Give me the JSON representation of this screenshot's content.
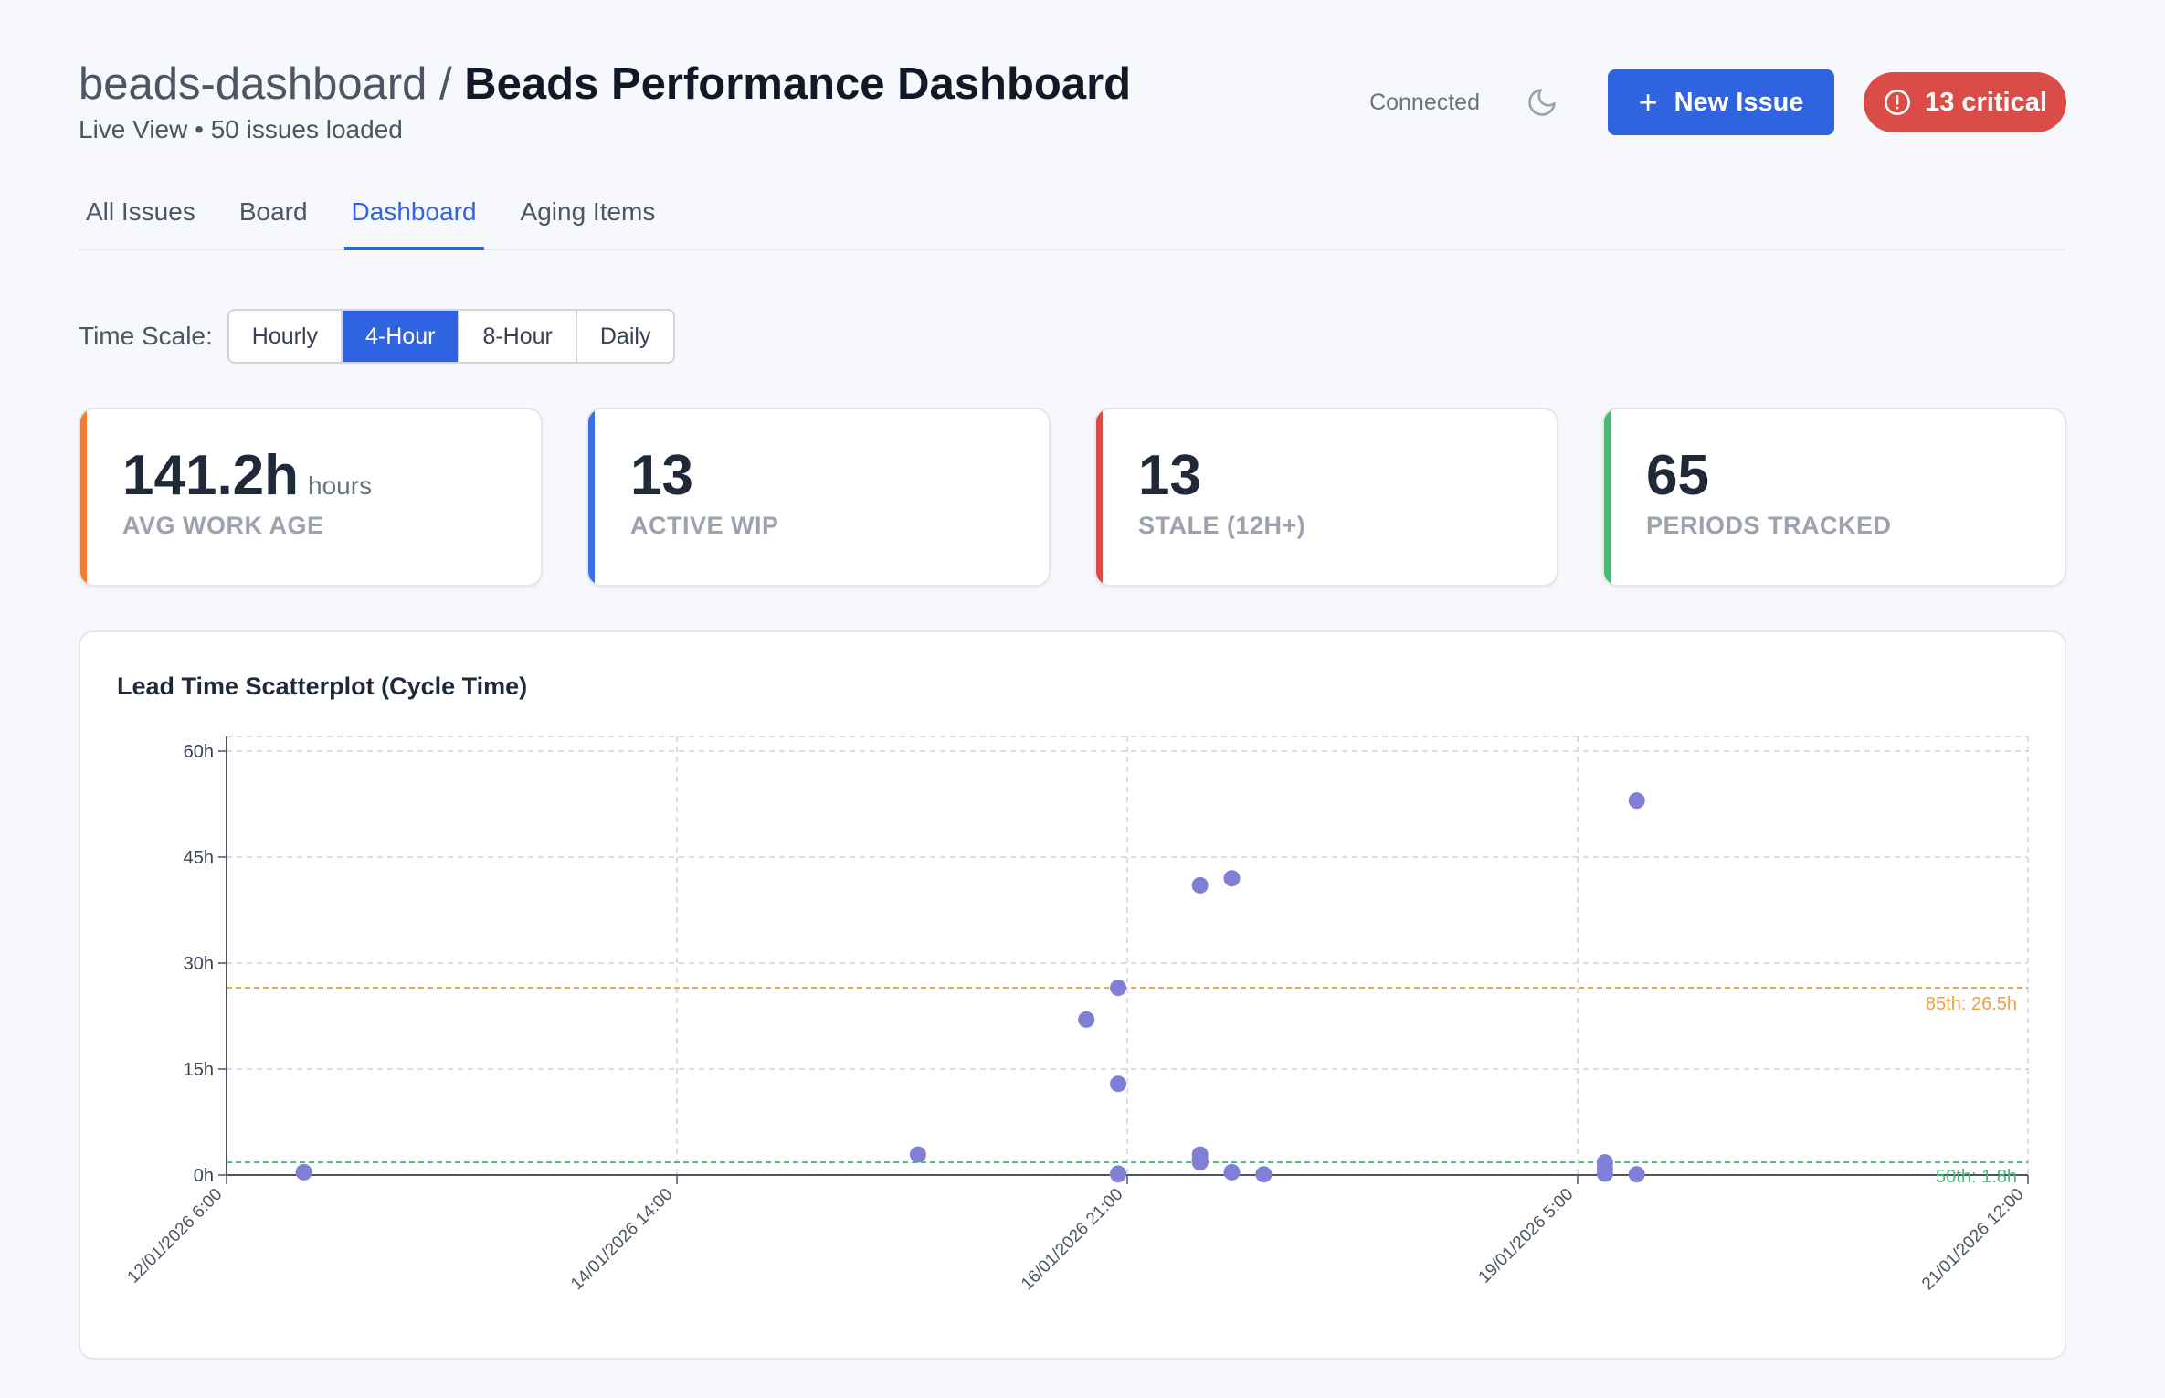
{
  "header": {
    "project": "beads-dashboard",
    "separator": "/",
    "title": "Beads Performance Dashboard",
    "subtitle": "Live View • 50 issues loaded",
    "status": "Connected",
    "new_issue_label": "New Issue",
    "critical_label": "13 critical"
  },
  "tabs": [
    "All Issues",
    "Board",
    "Dashboard",
    "Aging Items"
  ],
  "active_tab": "Dashboard",
  "time_scale": {
    "label": "Time Scale:",
    "options": [
      "Hourly",
      "4-Hour",
      "8-Hour",
      "Daily"
    ],
    "selected": "4-Hour"
  },
  "metrics": [
    {
      "value": "141.2h",
      "unit": "hours",
      "label": "AVG WORK AGE",
      "color": "#ef7d32"
    },
    {
      "value": "13",
      "unit": "",
      "label": "ACTIVE WIP",
      "color": "#3b6fe6"
    },
    {
      "value": "13",
      "unit": "",
      "label": "STALE (12H+)",
      "color": "#dc4c46"
    },
    {
      "value": "65",
      "unit": "",
      "label": "PERIODS TRACKED",
      "color": "#4cb877"
    }
  ],
  "colors": {
    "accent": "#2f63e0",
    "critical": "#dc4c46",
    "point": "#7f7fd5",
    "p85_line": "#f0a03c",
    "p50_line": "#4cb877"
  },
  "chart_data": {
    "type": "scatter",
    "title": "Lead Time Scatterplot (Cycle Time)",
    "x_ticks": [
      "12/01/2026 6:00",
      "14/01/2026 14:00",
      "16/01/2026 21:00",
      "19/01/2026 5:00",
      "21/01/2026 12:00"
    ],
    "x_unit": "hours since 12/01/2026 6:00",
    "xlim": [
      0,
      198
    ],
    "y_ticks": [
      "0h",
      "15h",
      "30h",
      "45h",
      "60h"
    ],
    "y_tick_values": [
      0,
      15,
      30,
      45,
      60
    ],
    "ylim": [
      0,
      60
    ],
    "points": [
      [
        8.5,
        0.4
      ],
      [
        76,
        2.9
      ],
      [
        94.5,
        22
      ],
      [
        98,
        26.5
      ],
      [
        98,
        12.9
      ],
      [
        98,
        0.2
      ],
      [
        98,
        0.1
      ],
      [
        107,
        41
      ],
      [
        107,
        2.9
      ],
      [
        107,
        2.2
      ],
      [
        107,
        1.8
      ],
      [
        110.5,
        42
      ],
      [
        110.5,
        0.4
      ],
      [
        114,
        0.1
      ],
      [
        151.5,
        1.8
      ],
      [
        151.5,
        0.9
      ],
      [
        151.5,
        0.2
      ],
      [
        155,
        53
      ],
      [
        155,
        0.1
      ]
    ],
    "reference_lines": [
      {
        "label": "85th: 26.5h",
        "value": 26.5
      },
      {
        "label": "50th: 1.8h",
        "value": 1.8
      }
    ],
    "grid": true
  }
}
